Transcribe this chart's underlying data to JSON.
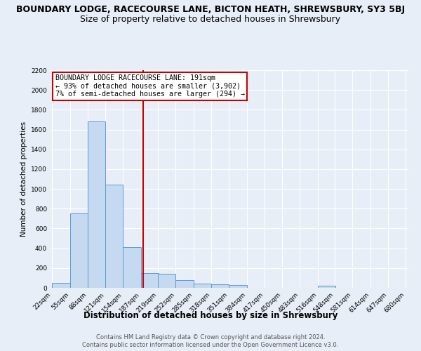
{
  "title": "BOUNDARY LODGE, RACECOURSE LANE, BICTON HEATH, SHREWSBURY, SY3 5BJ",
  "subtitle": "Size of property relative to detached houses in Shrewsbury",
  "xlabel": "Distribution of detached houses by size in Shrewsbury",
  "ylabel": "Number of detached properties",
  "footer_lines": [
    "Contains HM Land Registry data © Crown copyright and database right 2024.",
    "Contains public sector information licensed under the Open Government Licence v3.0."
  ],
  "bar_edges": [
    22,
    55,
    88,
    121,
    154,
    187,
    219,
    252,
    285,
    318,
    351,
    384,
    417,
    450,
    483,
    516,
    548,
    581,
    614,
    647,
    680
  ],
  "bar_heights": [
    50,
    750,
    1680,
    1040,
    410,
    150,
    140,
    80,
    45,
    35,
    25,
    0,
    0,
    0,
    0,
    20,
    0,
    0,
    0,
    0
  ],
  "bar_color": "#c5d9f0",
  "bar_edge_color": "#5b9bd5",
  "vline_x": 191,
  "vline_color": "#cc0000",
  "annotation_line1": "BOUNDARY LODGE RACECOURSE LANE: 191sqm",
  "annotation_line2": "← 93% of detached houses are smaller (3,902)",
  "annotation_line3": "7% of semi-detached houses are larger (294) →",
  "ylim": [
    0,
    2200
  ],
  "yticks": [
    0,
    200,
    400,
    600,
    800,
    1000,
    1200,
    1400,
    1600,
    1800,
    2000,
    2200
  ],
  "bg_color": "#e8eef7",
  "plot_bg_color": "#e8eef7",
  "grid_color": "#ffffff",
  "title_fontsize": 9,
  "subtitle_fontsize": 9
}
